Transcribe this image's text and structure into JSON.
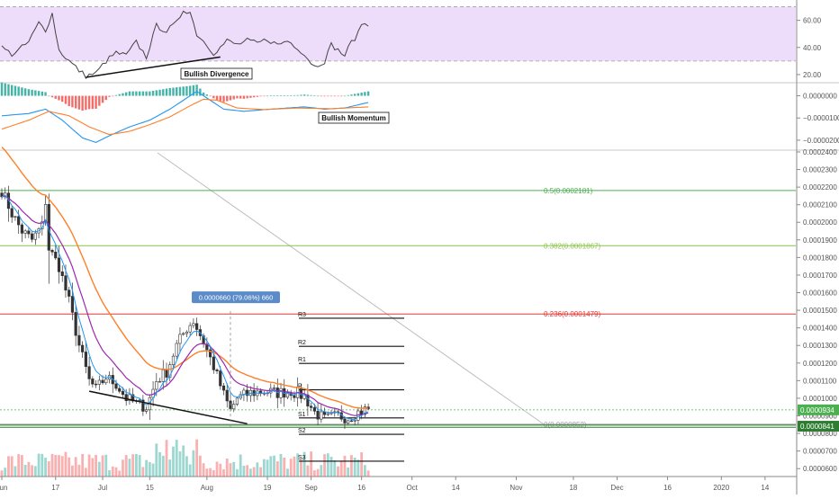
{
  "colors": {
    "rsi_band": "#eedcfb",
    "rsi_line": "#444444",
    "macd_line": "#2196f3",
    "signal_line": "#ff7f27",
    "hist_up": "#26a69a",
    "hist_down": "#ef5350",
    "candle_up": "#26a69a",
    "candle_down": "#ef5350",
    "ema_fast": "#2196f3",
    "ema_mid": "#9c27b0",
    "ema_slow": "#ff7f27",
    "fib_05": "#4caf50",
    "fib_0382": "#8bc34a",
    "fib_0236": "#e53935",
    "fib_0": "#9e9e9e",
    "support": "#2e7d32",
    "current_price": "#4caf50",
    "measure_label": "#5b8cc9",
    "trendline": "#111111",
    "diagonal": "#bdbdbd"
  },
  "x_axis": {
    "labels": [
      {
        "label": "Jun",
        "t": 0
      },
      {
        "label": "17",
        "t": 16
      },
      {
        "label": "Jul",
        "t": 30
      },
      {
        "label": "15",
        "t": 44
      },
      {
        "label": "Aug",
        "t": 61
      },
      {
        "label": "19",
        "t": 79
      },
      {
        "label": "Sep",
        "t": 92
      },
      {
        "label": "16",
        "t": 107
      },
      {
        "label": "Oct",
        "t": 122
      },
      {
        "label": "14",
        "t": 135
      },
      {
        "label": "Nov",
        "t": 153
      },
      {
        "label": "18",
        "t": 170
      },
      {
        "label": "Dec",
        "t": 183
      },
      {
        "label": "16",
        "t": 198
      },
      {
        "label": "2020",
        "t": 214
      },
      {
        "label": "14",
        "t": 227
      }
    ]
  },
  "rsi": {
    "ticks": [
      "60.00",
      "40.00",
      "20.00"
    ],
    "tick_values": [
      60,
      40,
      20
    ],
    "band_top": 70,
    "band_bottom": 30,
    "range": [
      14,
      75
    ],
    "annotation": "Bullish Divergence"
  },
  "macd": {
    "ticks": [
      "0.0000000",
      "−0.0000100",
      "−0.0000200"
    ],
    "tick_values": [
      0,
      -1e-05,
      -2e-05
    ],
    "range": [
      -2.45e-05,
      5.5e-06
    ],
    "annotation": "Bullish Momentum"
  },
  "price": {
    "ticks": [
      "0.0002400",
      "0.0002300",
      "0.0002200",
      "0.0002100",
      "0.0002000",
      "0.0001900",
      "0.0001800",
      "0.0001700",
      "0.0001600",
      "0.0001500",
      "0.0001400",
      "0.0001300",
      "0.0001200",
      "0.0001100",
      "0.0001000",
      "0.0000900",
      "0.0000800",
      "0.0000700",
      "0.0000600"
    ],
    "tick_values": [
      0.00024,
      0.00023,
      0.00022,
      0.00021,
      0.0002,
      0.00019,
      0.00018,
      0.00017,
      0.00016,
      0.00015,
      0.00014,
      0.00013,
      0.00012,
      0.00011,
      0.0001,
      9e-05,
      8e-05,
      7e-05,
      6e-05
    ],
    "range": [
      5.55e-05,
      0.0002405
    ],
    "fib_levels": [
      {
        "label": "0.5(0.0002181)",
        "value": 0.0002181,
        "color_key": "fib_05"
      },
      {
        "label": "0.382(0.0001867)",
        "value": 0.0001867,
        "color_key": "fib_0382"
      },
      {
        "label": "0.236(0.0001479)",
        "value": 0.0001479,
        "color_key": "fib_0236"
      },
      {
        "label": "0(0.0000852)",
        "value": 8.52e-05,
        "color_key": "fib_0"
      }
    ],
    "pivots": [
      {
        "label": "R3",
        "value": 0.0001455
      },
      {
        "label": "R2",
        "value": 0.0001295
      },
      {
        "label": "R1",
        "value": 0.0001198
      },
      {
        "label": "P",
        "value": 0.0001048
      },
      {
        "label": "S1",
        "value": 8.88e-05
      },
      {
        "label": "S2",
        "value": 7.95e-05
      },
      {
        "label": "S3",
        "value": 6.42e-05
      }
    ],
    "current_price": {
      "label": "0.0000934",
      "value": 9.34e-05
    },
    "support_level": {
      "label": "0.0000841",
      "value": 8.41e-05
    },
    "measure": {
      "label": "0.0000660 (79.06%) 660",
      "t": 68,
      "from": 8.35e-05,
      "to": 0.0001495
    }
  }
}
